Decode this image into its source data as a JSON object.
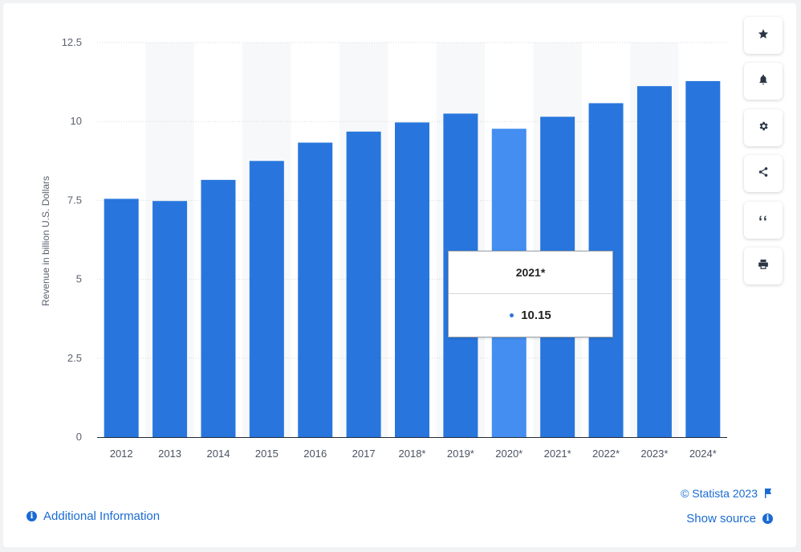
{
  "chart_data": {
    "type": "bar",
    "categories": [
      "2012",
      "2013",
      "2014",
      "2015",
      "2016",
      "2017",
      "2018*",
      "2019*",
      "2020*",
      "2021*",
      "2022*",
      "2023*",
      "2024*"
    ],
    "values": [
      7.55,
      7.48,
      8.15,
      8.75,
      9.33,
      9.68,
      9.97,
      10.25,
      9.77,
      10.15,
      10.58,
      11.12,
      11.28
    ],
    "ylabel": "Revenue in billion U.S. Dollars",
    "ylim": [
      0,
      12.5
    ],
    "yticks": [
      0,
      2.5,
      5,
      7.5,
      10,
      12.5
    ],
    "ytick_labels": [
      "0",
      "2.5",
      "5",
      "7.5",
      "10",
      "12.5"
    ],
    "highlighted_index": 8,
    "colors": {
      "bar": "#2876dd",
      "bar_highlight": "#438ef0",
      "band": "#f7f8f9",
      "grid": "#d6d9de"
    },
    "grid": true
  },
  "tooltip": {
    "title": "2021*",
    "value": "10.15"
  },
  "sidebar": {
    "buttons": [
      {
        "name": "favorite-button",
        "icon": "star-icon"
      },
      {
        "name": "notification-button",
        "icon": "bell-icon"
      },
      {
        "name": "settings-button",
        "icon": "gear-icon"
      },
      {
        "name": "share-button",
        "icon": "share-icon"
      },
      {
        "name": "cite-button",
        "icon": "quote-icon"
      },
      {
        "name": "print-button",
        "icon": "print-icon"
      }
    ]
  },
  "footer": {
    "additional_info": "Additional Information",
    "copyright": "© Statista 2023",
    "show_source": "Show source"
  }
}
